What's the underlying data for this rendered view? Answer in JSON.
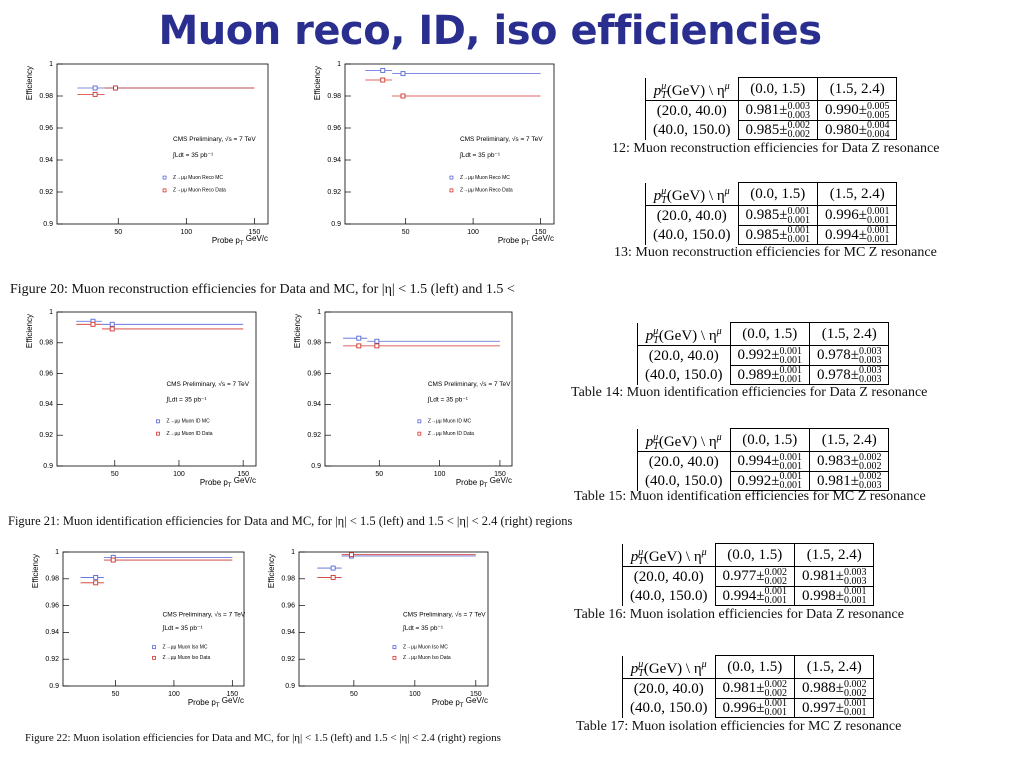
{
  "title": "Muon reco, ID, iso efficiencies",
  "figures": [
    {
      "caption": "Figure 20: Muon reconstruction efficiencies for Data and MC, for |η| < 1.5 (left) and 1.5 <"
    },
    {
      "caption": "Figure 21: Muon identification efficiencies for Data and MC, for |η| < 1.5 (left) and 1.5 < |η| < 2.4 (right) regions"
    },
    {
      "caption": "Figure 22: Muon isolation efficiencies for Data and MC, for |η| < 1.5 (left) and 1.5 < |η| < 2.4 (right) regions"
    }
  ],
  "chart_data": [
    {
      "type": "scatter",
      "ylabel": "Efficiency",
      "xlabel": {
        "text": "Probe p",
        "sub": "T",
        "unit": " GeV/c"
      },
      "annotations": [
        "CMS Preliminary, √s = 7 TeV",
        "∫Ldt = 35 pb⁻¹"
      ],
      "xlim": [
        5,
        160
      ],
      "xticks": [
        50,
        100,
        150
      ],
      "ylim": [
        0.9,
        1
      ],
      "yticks": [
        0.9,
        0.92,
        0.94,
        0.96,
        0.98,
        1
      ],
      "x": [
        33,
        48
      ],
      "x_bin_edges": [
        20,
        40,
        150
      ],
      "series": [
        {
          "name": "Z→μμ Muon Reco MC",
          "color": "#5566d8",
          "values": [
            0.985,
            0.985
          ]
        },
        {
          "name": "Z→μμ Muon Reco Data",
          "color": "#d2332b",
          "values": [
            0.981,
            0.985
          ]
        }
      ]
    },
    {
      "type": "scatter",
      "ylabel": "Efficiency",
      "xlabel": {
        "text": "Probe p",
        "sub": "T",
        "unit": " GeV/c"
      },
      "annotations": [
        "CMS Preliminary, √s = 7 TeV",
        "∫Ldt = 35 pb⁻¹"
      ],
      "xlim": [
        5,
        160
      ],
      "xticks": [
        50,
        100,
        150
      ],
      "ylim": [
        0.9,
        1
      ],
      "yticks": [
        0.9,
        0.92,
        0.94,
        0.96,
        0.98,
        1
      ],
      "x": [
        33,
        48
      ],
      "x_bin_edges": [
        20,
        40,
        150
      ],
      "series": [
        {
          "name": "Z→μμ Muon Reco MC",
          "color": "#5566d8",
          "values": [
            0.996,
            0.994
          ]
        },
        {
          "name": "Z→μμ Muon Reco Data",
          "color": "#d2332b",
          "values": [
            0.99,
            0.98
          ]
        }
      ]
    },
    {
      "type": "scatter",
      "ylabel": "Efficiency",
      "xlabel": {
        "text": "Probe p",
        "sub": "T",
        "unit": " GeV/c"
      },
      "annotations": [
        "CMS Preliminary, √s = 7 TeV",
        "∫Ldt = 35 pb⁻¹"
      ],
      "xlim": [
        5,
        160
      ],
      "xticks": [
        50,
        100,
        150
      ],
      "ylim": [
        0.9,
        1
      ],
      "yticks": [
        0.9,
        0.92,
        0.94,
        0.96,
        0.98,
        1
      ],
      "x": [
        33,
        48
      ],
      "x_bin_edges": [
        20,
        40,
        150
      ],
      "series": [
        {
          "name": "Z→μμ Muon ID MC",
          "color": "#5566d8",
          "values": [
            0.994,
            0.992
          ]
        },
        {
          "name": "Z→μμ Muon ID Data",
          "color": "#d2332b",
          "values": [
            0.992,
            0.989
          ]
        }
      ]
    },
    {
      "type": "scatter",
      "ylabel": "Efficiency",
      "xlabel": {
        "text": "Probe p",
        "sub": "T",
        "unit": " GeV/c"
      },
      "annotations": [
        "CMS Preliminary, √s = 7 TeV",
        "∫Ldt = 35 pb⁻¹"
      ],
      "xlim": [
        5,
        160
      ],
      "xticks": [
        50,
        100,
        150
      ],
      "ylim": [
        0.9,
        1
      ],
      "yticks": [
        0.9,
        0.92,
        0.94,
        0.96,
        0.98,
        1
      ],
      "x": [
        33,
        48
      ],
      "x_bin_edges": [
        20,
        40,
        150
      ],
      "series": [
        {
          "name": "Z→μμ Muon ID MC",
          "color": "#5566d8",
          "values": [
            0.983,
            0.981
          ]
        },
        {
          "name": "Z→μμ Muon ID Data",
          "color": "#d2332b",
          "values": [
            0.978,
            0.978
          ]
        }
      ]
    },
    {
      "type": "scatter",
      "ylabel": "Efficiency",
      "xlabel": {
        "text": "Probe p",
        "sub": "T",
        "unit": " GeV/c"
      },
      "annotations": [
        "CMS Preliminary, √s = 7 TeV",
        "∫Ldt = 35 pb⁻¹"
      ],
      "xlim": [
        5,
        160
      ],
      "xticks": [
        50,
        100,
        150
      ],
      "ylim": [
        0.9,
        1
      ],
      "yticks": [
        0.9,
        0.92,
        0.94,
        0.96,
        0.98,
        1
      ],
      "x": [
        33,
        48
      ],
      "x_bin_edges": [
        20,
        40,
        150
      ],
      "series": [
        {
          "name": "Z→μμ Muon Iso MC",
          "color": "#5566d8",
          "values": [
            0.981,
            0.996
          ]
        },
        {
          "name": "Z→μμ Muon Iso Data",
          "color": "#d2332b",
          "values": [
            0.977,
            0.994
          ]
        }
      ]
    },
    {
      "type": "scatter",
      "ylabel": "Efficiency",
      "xlabel": {
        "text": "Probe p",
        "sub": "T",
        "unit": " GeV/c"
      },
      "annotations": [
        "CMS Preliminary, √s = 7 TeV",
        "∫Ldt = 35 pb⁻¹"
      ],
      "xlim": [
        5,
        160
      ],
      "xticks": [
        50,
        100,
        150
      ],
      "ylim": [
        0.9,
        1
      ],
      "yticks": [
        0.9,
        0.92,
        0.94,
        0.96,
        0.98,
        1
      ],
      "x": [
        33,
        48
      ],
      "x_bin_edges": [
        20,
        40,
        150
      ],
      "series": [
        {
          "name": "Z→μμ Muon Iso MC",
          "color": "#5566d8",
          "values": [
            0.988,
            0.997
          ]
        },
        {
          "name": "Z→μμ Muon Iso Data",
          "color": "#d2332b",
          "values": [
            0.981,
            0.998
          ]
        }
      ]
    }
  ],
  "tables": [
    {
      "header": [
        {
          "symbol": "p",
          "sup": "μ",
          "sub": "T",
          "rest": "(GeV) \\ η",
          "sup2": "μ"
        },
        "(0.0, 1.5)",
        "(1.5, 2.4)"
      ],
      "rows": [
        {
          "label": "(20.0, 40.0)",
          "cells": [
            {
              "value": "0.981±",
              "up": "0.003",
              "down": "0.003"
            },
            {
              "value": "0.990±",
              "up": "0.005",
              "down": "0.005"
            }
          ]
        },
        {
          "label": "(40.0, 150.0)",
          "cells": [
            {
              "value": "0.985±",
              "up": "0.002",
              "down": "0.002"
            },
            {
              "value": "0.980±",
              "up": "0.004",
              "down": "0.004"
            }
          ]
        }
      ],
      "caption": "12: Muon reconstruction efficiencies for Data Z resonance"
    },
    {
      "header": [
        {
          "symbol": "p",
          "sup": "μ",
          "sub": "T",
          "rest": "(GeV) \\ η",
          "sup2": "μ"
        },
        "(0.0, 1.5)",
        "(1.5, 2.4)"
      ],
      "rows": [
        {
          "label": "(20.0, 40.0)",
          "cells": [
            {
              "value": "0.985±",
              "up": "0.001",
              "down": "0.001"
            },
            {
              "value": "0.996±",
              "up": "0.001",
              "down": "0.001"
            }
          ]
        },
        {
          "label": "(40.0, 150.0)",
          "cells": [
            {
              "value": "0.985±",
              "up": "0.001",
              "down": "0.001"
            },
            {
              "value": "0.994±",
              "up": "0.001",
              "down": "0.001"
            }
          ]
        }
      ],
      "caption": "13: Muon reconstruction efficiencies for MC Z resonance"
    },
    {
      "header": [
        {
          "symbol": "p",
          "sup": "μ",
          "sub": "T",
          "rest": "(GeV) \\ η",
          "sup2": "μ"
        },
        "(0.0, 1.5)",
        "(1.5, 2.4)"
      ],
      "rows": [
        {
          "label": "(20.0, 40.0)",
          "cells": [
            {
              "value": "0.992±",
              "up": "0.001",
              "down": "0.001"
            },
            {
              "value": "0.978±",
              "up": "0.003",
              "down": "0.003"
            }
          ]
        },
        {
          "label": "(40.0, 150.0)",
          "cells": [
            {
              "value": "0.989±",
              "up": "0.001",
              "down": "0.001"
            },
            {
              "value": "0.978±",
              "up": "0.003",
              "down": "0.003"
            }
          ]
        }
      ],
      "caption": "Table 14: Muon identification efficiencies for Data Z resonance"
    },
    {
      "header": [
        {
          "symbol": "p",
          "sup": "μ",
          "sub": "T",
          "rest": "(GeV) \\ η",
          "sup2": "μ"
        },
        "(0.0, 1.5)",
        "(1.5, 2.4)"
      ],
      "rows": [
        {
          "label": "(20.0, 40.0)",
          "cells": [
            {
              "value": "0.994±",
              "up": "0.001",
              "down": "0.001"
            },
            {
              "value": "0.983±",
              "up": "0.002",
              "down": "0.002"
            }
          ]
        },
        {
          "label": "(40.0, 150.0)",
          "cells": [
            {
              "value": "0.992±",
              "up": "0.001",
              "down": "0.001"
            },
            {
              "value": "0.981±",
              "up": "0.002",
              "down": "0.003"
            }
          ]
        }
      ],
      "caption": "Table 15: Muon identification efficiencies for MC Z resonance"
    },
    {
      "header": [
        {
          "symbol": "p",
          "sup": "μ",
          "sub": "T",
          "rest": "(GeV) \\ η",
          "sup2": "μ"
        },
        "(0.0, 1.5)",
        "(1.5, 2.4)"
      ],
      "rows": [
        {
          "label": "(20.0, 40.0)",
          "cells": [
            {
              "value": "0.977±",
              "up": "0.002",
              "down": "0.002"
            },
            {
              "value": "0.981±",
              "up": "0.003",
              "down": "0.003"
            }
          ]
        },
        {
          "label": "(40.0, 150.0)",
          "cells": [
            {
              "value": "0.994±",
              "up": "0.001",
              "down": "0.001"
            },
            {
              "value": "0.998±",
              "up": "0.001",
              "down": "0.001"
            }
          ]
        }
      ],
      "caption": "Table 16: Muon isolation efficiencies for Data Z resonance"
    },
    {
      "header": [
        {
          "symbol": "p",
          "sup": "μ",
          "sub": "T",
          "rest": "(GeV) \\ η",
          "sup2": "μ"
        },
        "(0.0, 1.5)",
        "(1.5, 2.4)"
      ],
      "rows": [
        {
          "label": "(20.0, 40.0)",
          "cells": [
            {
              "value": "0.981±",
              "up": "0.002",
              "down": "0.002"
            },
            {
              "value": "0.988±",
              "up": "0.002",
              "down": "0.002"
            }
          ]
        },
        {
          "label": "(40.0, 150.0)",
          "cells": [
            {
              "value": "0.996±",
              "up": "0.001",
              "down": "0.001"
            },
            {
              "value": "0.997±",
              "up": "0.001",
              "down": "0.001"
            }
          ]
        }
      ],
      "caption": "Table 17: Muon isolation efficiencies for MC Z resonance"
    }
  ]
}
